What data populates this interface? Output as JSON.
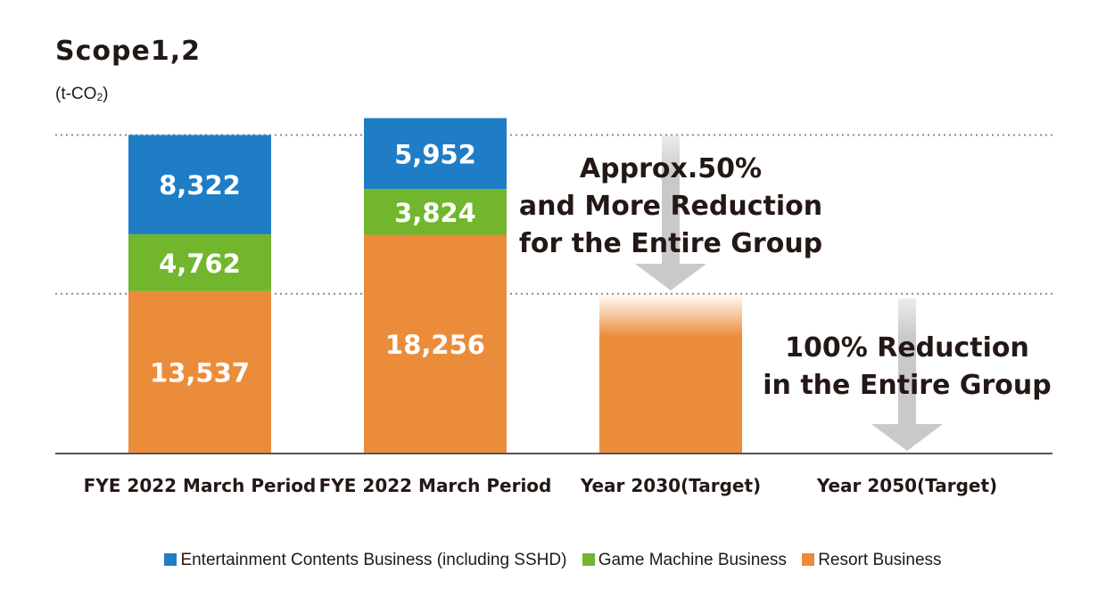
{
  "chart_data": {
    "type": "bar",
    "stacked": true,
    "title": "Scope1,2",
    "unit_prefix": "(t-CO",
    "unit_sub": "2",
    "unit_suffix": ")",
    "categories": [
      "FYE 2022 March Period",
      "FYE 2022 March Period",
      "Year 2030(Target)",
      "Year 2050(Target)"
    ],
    "series": [
      {
        "name": "Resort Business",
        "color": "#eb8c3a",
        "values": [
          13537,
          18256,
          null,
          null
        ]
      },
      {
        "name": "Game Machine Business",
        "color": "#72b62d",
        "values": [
          4762,
          3824,
          null,
          null
        ]
      },
      {
        "name": "Entertainment Contents Business (including SSHD)",
        "color": "#1f7dc6",
        "values": [
          8322,
          5952,
          null,
          null
        ]
      }
    ],
    "labels": [
      [
        "13,537",
        "4,762",
        "8,322"
      ],
      [
        "18,256",
        "3,824",
        "5,952"
      ]
    ],
    "target_2030": {
      "approx_value": 13311,
      "color": "#eb8c3a"
    },
    "ylim": [
      0,
      28000
    ],
    "reference_lines": [
      26621,
      13311
    ],
    "annotations": [
      {
        "lines": [
          "Approx.50%",
          "and More Reduction",
          "for the Entire Group"
        ]
      },
      {
        "lines": [
          "100% Reduction",
          "in the Entire Group"
        ]
      }
    ],
    "legend_position": "bottom",
    "grid": false
  }
}
